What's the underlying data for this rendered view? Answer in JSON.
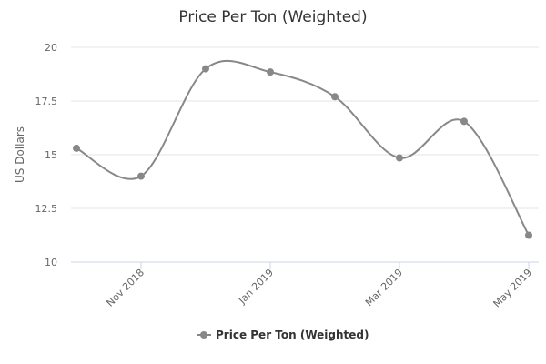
{
  "chart_data": {
    "type": "line",
    "title": "Price Per Ton (Weighted)",
    "ylabel": "US Dollars",
    "xlabel": "",
    "ylim": [
      10,
      20
    ],
    "y_ticks": [
      10,
      12.5,
      15,
      17.5,
      20
    ],
    "y_tick_labels": [
      "10",
      "12.5",
      "15",
      "17.5",
      "20"
    ],
    "x": [
      "Oct 2018",
      "Nov 2018",
      "Dec 2018",
      "Jan 2019",
      "Feb 2019",
      "Mar 2019",
      "Apr 2019",
      "May 2019"
    ],
    "x_tick_labels": [
      "Nov 2018",
      "Jan 2019",
      "Mar 2019",
      "May 2019"
    ],
    "grid": true,
    "legend_position": "bottom-center",
    "series": [
      {
        "name": "Price Per Ton (Weighted)",
        "color": "#888888",
        "values": [
          15.3,
          14.0,
          19.0,
          18.85,
          17.7,
          14.85,
          16.55,
          11.25
        ]
      }
    ]
  }
}
